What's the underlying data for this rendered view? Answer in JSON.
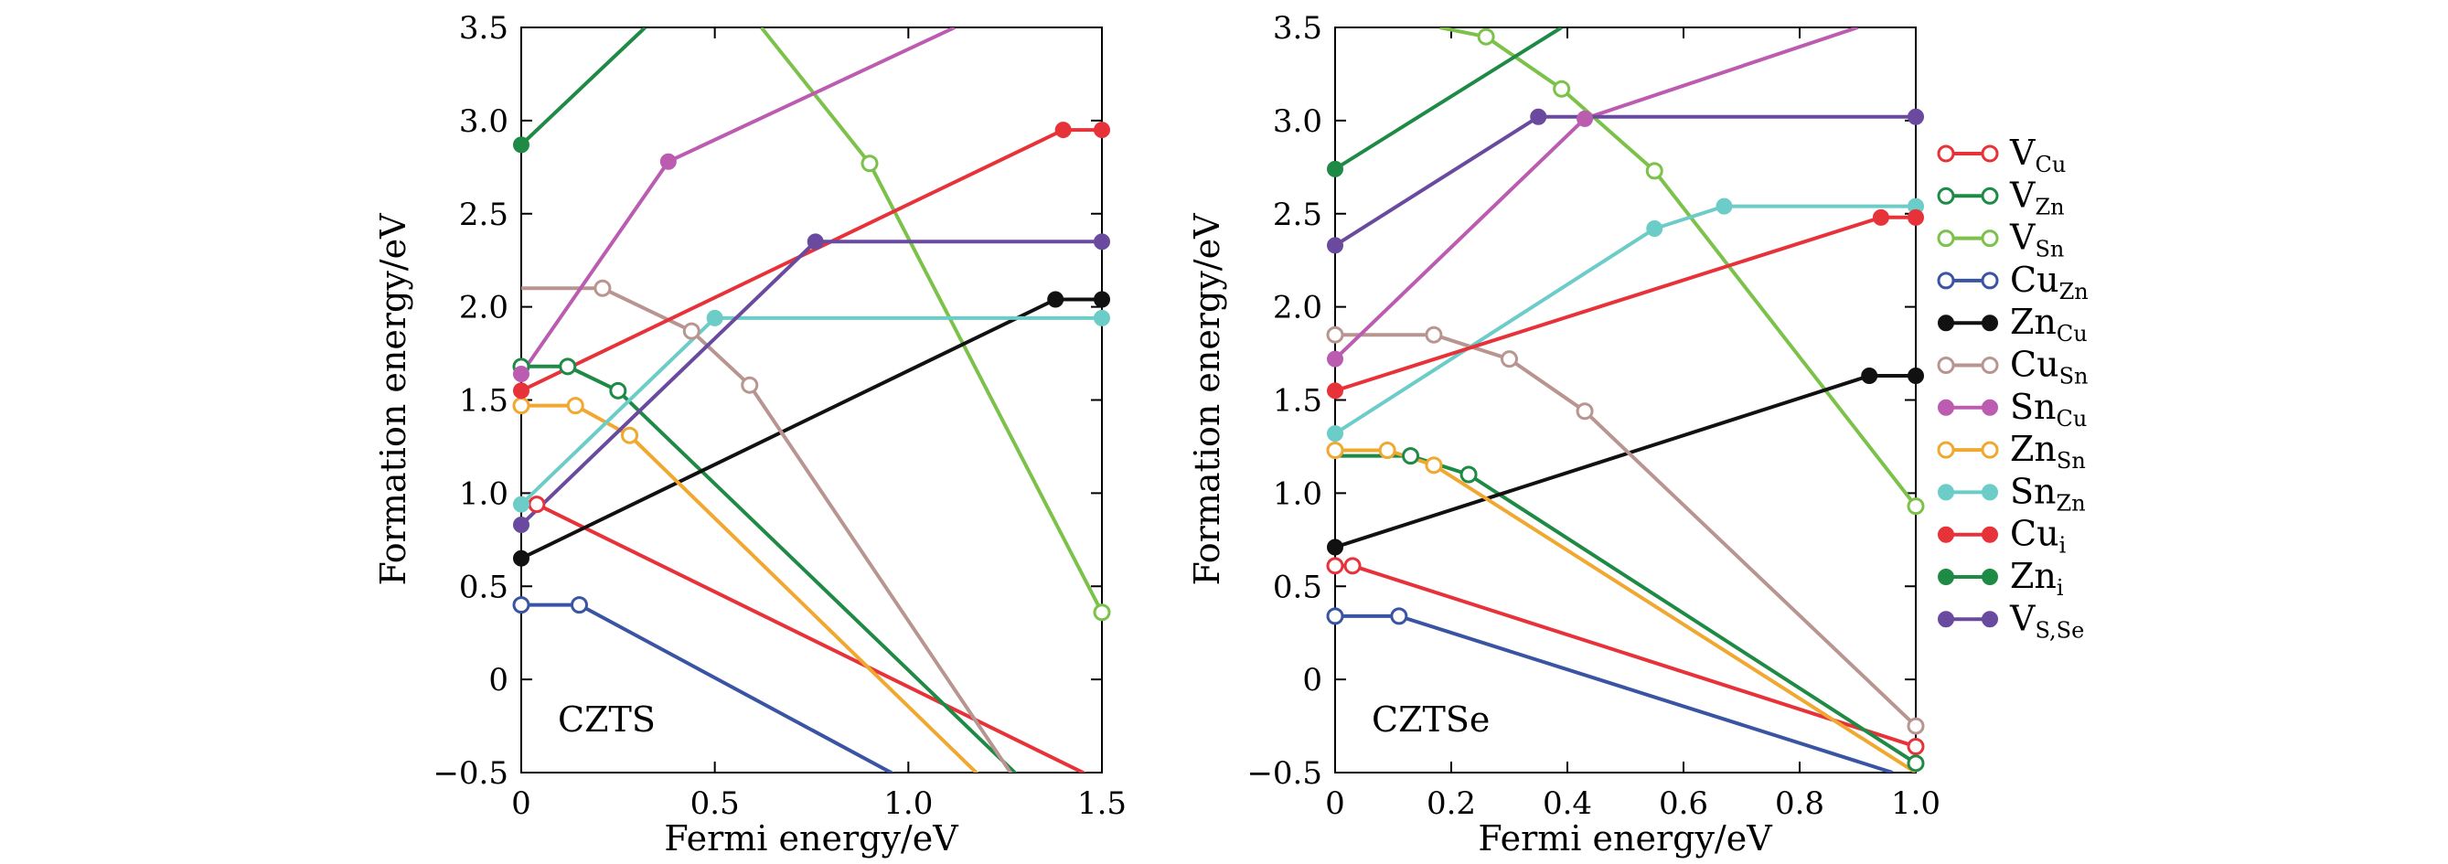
{
  "figure": {
    "legend": [
      {
        "key": "vcu",
        "base": "V",
        "sub": "Cu",
        "color": "#e8323a",
        "marker": "open"
      },
      {
        "key": "vzn",
        "base": "V",
        "sub": "Zn",
        "color": "#1e8a45",
        "marker": "open"
      },
      {
        "key": "vsn",
        "base": "V",
        "sub": "Sn",
        "color": "#7cc24a",
        "marker": "open"
      },
      {
        "key": "cuzn",
        "base": "Cu",
        "sub": "Zn",
        "color": "#3a54a4",
        "marker": "open"
      },
      {
        "key": "zncu",
        "base": "Zn",
        "sub": "Cu",
        "color": "#111111",
        "marker": "filled"
      },
      {
        "key": "cusn",
        "base": "Cu",
        "sub": "Sn",
        "color": "#b89590",
        "marker": "open"
      },
      {
        "key": "sncu",
        "base": "Sn",
        "sub": "Cu",
        "color": "#bc5cb0",
        "marker": "filled"
      },
      {
        "key": "znsn",
        "base": "Zn",
        "sub": "Sn",
        "color": "#f0a830",
        "marker": "open"
      },
      {
        "key": "snzn",
        "base": "Sn",
        "sub": "Zn",
        "color": "#6cccc8",
        "marker": "filled"
      },
      {
        "key": "cui",
        "base": "Cu",
        "sub": "i",
        "color": "#e8323a",
        "marker": "filled"
      },
      {
        "key": "zni",
        "base": "Zn",
        "sub": "i",
        "color": "#1e8a45",
        "marker": "filled"
      },
      {
        "key": "vsse",
        "base": "V",
        "sub": "S,Se",
        "color": "#6a4a9e",
        "marker": "filled"
      }
    ]
  },
  "chart_data": [
    {
      "type": "line",
      "label": "CZTS",
      "xlabel": "Fermi energy/eV",
      "ylabel": "Formation energy/eV",
      "xlim": [
        0,
        1.5
      ],
      "ylim": [
        -0.5,
        3.5
      ],
      "xticks": [
        0,
        0.5,
        1.0,
        1.5
      ],
      "xtick_labels": [
        "0",
        "0.5",
        "1.0",
        "1.5"
      ],
      "yticks": [
        -0.5,
        0,
        0.5,
        1.0,
        1.5,
        2.0,
        2.5,
        3.0,
        3.5
      ],
      "ytick_labels": [
        "−0.5",
        "0",
        "0.5",
        "1.0",
        "1.5",
        "2.0",
        "2.5",
        "3.0",
        "3.5"
      ],
      "series": [
        {
          "name": "V_Cu",
          "points": [
            [
              0,
              0.96
            ],
            [
              0.04,
              0.94
            ],
            [
              1.5,
              -0.55
            ]
          ],
          "markers": [
            1
          ]
        },
        {
          "name": "V_Zn",
          "points": [
            [
              0,
              1.68
            ],
            [
              0.12,
              1.68
            ],
            [
              0.25,
              1.55
            ],
            [
              1.3,
              -0.55
            ]
          ],
          "markers": [
            0,
            1,
            2
          ]
        },
        {
          "name": "V_Sn",
          "points": [
            [
              0.62,
              3.5
            ],
            [
              0.9,
              2.77
            ],
            [
              1.5,
              0.36
            ]
          ],
          "markers": [
            1,
            2
          ]
        },
        {
          "name": "Cu_Zn",
          "points": [
            [
              0,
              0.4
            ],
            [
              0.15,
              0.4
            ],
            [
              1.0,
              -0.55
            ]
          ],
          "markers": [
            0,
            1
          ]
        },
        {
          "name": "Zn_Cu",
          "points": [
            [
              0,
              0.65
            ],
            [
              1.38,
              2.04
            ],
            [
              1.5,
              2.04
            ]
          ],
          "markers": [
            0,
            1,
            2
          ]
        },
        {
          "name": "Cu_Sn",
          "points": [
            [
              0,
              2.1
            ],
            [
              0.21,
              2.1
            ],
            [
              0.44,
              1.87
            ],
            [
              0.59,
              1.58
            ],
            [
              1.28,
              -0.55
            ]
          ],
          "markers": [
            1,
            2,
            3
          ]
        },
        {
          "name": "Sn_Cu",
          "points": [
            [
              0,
              1.64
            ],
            [
              0.38,
              2.78
            ],
            [
              1.12,
              3.5
            ]
          ],
          "markers": [
            0,
            1
          ]
        },
        {
          "name": "Zn_Sn",
          "points": [
            [
              0,
              1.47
            ],
            [
              0.14,
              1.47
            ],
            [
              0.28,
              1.31
            ],
            [
              1.2,
              -0.55
            ]
          ],
          "markers": [
            0,
            1,
            2
          ]
        },
        {
          "name": "Sn_Zn",
          "points": [
            [
              0,
              0.94
            ],
            [
              0.5,
              1.94
            ],
            [
              1.5,
              1.94
            ]
          ],
          "markers": [
            0,
            1,
            2
          ]
        },
        {
          "name": "Cu_i",
          "points": [
            [
              0,
              1.55
            ],
            [
              1.4,
              2.95
            ],
            [
              1.5,
              2.95
            ]
          ],
          "markers": [
            0,
            1,
            2
          ]
        },
        {
          "name": "Zn_i",
          "points": [
            [
              0,
              2.87
            ],
            [
              0.32,
              3.5
            ]
          ],
          "markers": [
            0
          ]
        },
        {
          "name": "V_S,Se",
          "points": [
            [
              0,
              0.83
            ],
            [
              0.76,
              2.35
            ],
            [
              1.5,
              2.35
            ]
          ],
          "markers": [
            0,
            1,
            2
          ]
        }
      ]
    },
    {
      "type": "line",
      "label": "CZTSe",
      "xlabel": "Fermi energy/eV",
      "ylabel": "Formation energy/eV",
      "xlim": [
        0,
        1.0
      ],
      "ylim": [
        -0.5,
        3.5
      ],
      "xticks": [
        0,
        0.2,
        0.4,
        0.6,
        0.8,
        1.0
      ],
      "xtick_labels": [
        "0",
        "0.2",
        "0.4",
        "0.6",
        "0.8",
        "1.0"
      ],
      "yticks": [
        -0.5,
        0,
        0.5,
        1.0,
        1.5,
        2.0,
        2.5,
        3.0,
        3.5
      ],
      "ytick_labels": [
        "−0.5",
        "0",
        "0.5",
        "1.0",
        "1.5",
        "2.0",
        "2.5",
        "3.0",
        "3.5"
      ],
      "series": [
        {
          "name": "V_Cu",
          "points": [
            [
              0,
              0.61
            ],
            [
              0.03,
              0.61
            ],
            [
              1.0,
              -0.36
            ]
          ],
          "markers": [
            0,
            1,
            2
          ]
        },
        {
          "name": "V_Zn",
          "points": [
            [
              0,
              1.2
            ],
            [
              0.13,
              1.2
            ],
            [
              0.23,
              1.1
            ],
            [
              1.0,
              -0.45
            ]
          ],
          "markers": [
            1,
            2,
            3
          ]
        },
        {
          "name": "V_Sn",
          "points": [
            [
              0.18,
              3.5
            ],
            [
              0.26,
              3.45
            ],
            [
              0.39,
              3.17
            ],
            [
              0.55,
              2.73
            ],
            [
              1.0,
              0.93
            ]
          ],
          "markers": [
            1,
            2,
            3,
            4
          ]
        },
        {
          "name": "Cu_Zn",
          "points": [
            [
              0,
              0.34
            ],
            [
              0.11,
              0.34
            ],
            [
              0.96,
              -0.5
            ]
          ],
          "markers": [
            0,
            1
          ]
        },
        {
          "name": "Zn_Cu",
          "points": [
            [
              0,
              0.71
            ],
            [
              0.92,
              1.63
            ],
            [
              1.0,
              1.63
            ]
          ],
          "markers": [
            0,
            1,
            2
          ]
        },
        {
          "name": "Cu_Sn",
          "points": [
            [
              0,
              1.85
            ],
            [
              0.17,
              1.85
            ],
            [
              0.3,
              1.72
            ],
            [
              0.43,
              1.44
            ],
            [
              1.0,
              -0.25
            ]
          ],
          "markers": [
            0,
            1,
            2,
            3,
            4
          ]
        },
        {
          "name": "Sn_Cu",
          "points": [
            [
              0,
              1.72
            ],
            [
              0.43,
              3.01
            ],
            [
              0.9,
              3.5
            ]
          ],
          "markers": [
            0,
            1
          ]
        },
        {
          "name": "Zn_Sn",
          "points": [
            [
              0,
              1.23
            ],
            [
              0.09,
              1.23
            ],
            [
              0.17,
              1.15
            ],
            [
              1.0,
              -0.5
            ]
          ],
          "markers": [
            0,
            1,
            2
          ]
        },
        {
          "name": "Sn_Zn",
          "points": [
            [
              0,
              1.32
            ],
            [
              0.55,
              2.42
            ],
            [
              0.67,
              2.54
            ],
            [
              1.0,
              2.54
            ]
          ],
          "markers": [
            0,
            1,
            2,
            3
          ]
        },
        {
          "name": "Cu_i",
          "points": [
            [
              0,
              1.55
            ],
            [
              0.94,
              2.48
            ],
            [
              1.0,
              2.48
            ]
          ],
          "markers": [
            0,
            1,
            2
          ]
        },
        {
          "name": "Zn_i",
          "points": [
            [
              0,
              2.74
            ],
            [
              0.39,
              3.5
            ]
          ],
          "markers": [
            0
          ]
        },
        {
          "name": "V_S,Se",
          "points": [
            [
              0,
              2.33
            ],
            [
              0.35,
              3.02
            ],
            [
              1.0,
              3.02
            ]
          ],
          "markers": [
            0,
            1,
            2
          ]
        }
      ]
    }
  ]
}
